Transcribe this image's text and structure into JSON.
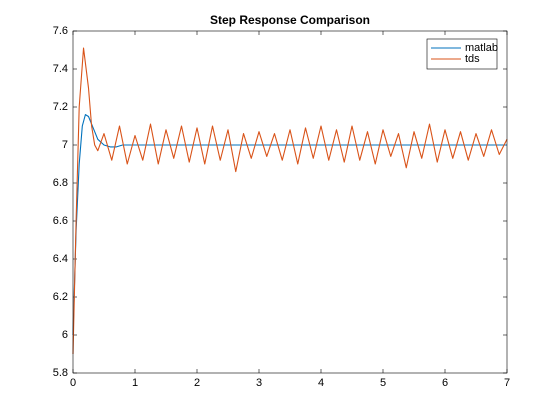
{
  "chart_data": {
    "type": "line",
    "title": "Step Response Comparison",
    "xlim": [
      0,
      7
    ],
    "xticks": [
      0,
      1,
      2,
      3,
      4,
      5,
      6,
      7
    ],
    "ylim": [
      5.8,
      7.6
    ],
    "yticks": [
      5.8,
      6,
      6.2,
      6.4,
      6.6,
      6.8,
      7,
      7.2,
      7.4,
      7.6
    ],
    "grid": false,
    "legend": "northeast",
    "series": [
      {
        "name": "matlab",
        "color": "#0072bd",
        "x": [
          0,
          0.05,
          0.1,
          0.15,
          0.2,
          0.25,
          0.3,
          0.35,
          0.4,
          0.5,
          0.6,
          0.7,
          0.8,
          1,
          2,
          3,
          4,
          5,
          6,
          7
        ],
        "values": [
          6,
          6.55,
          6.9,
          7.1,
          7.16,
          7.15,
          7.11,
          7.07,
          7.03,
          7,
          6.99,
          6.99,
          7,
          7,
          7,
          7,
          7,
          7,
          7,
          7
        ]
      },
      {
        "name": "tds",
        "color": "#d95319",
        "x": [
          0,
          0.05,
          0.1,
          0.17,
          0.25,
          0.3,
          0.35,
          0.4,
          0.5,
          0.625,
          0.75,
          0.875,
          1,
          1.125,
          1.25,
          1.375,
          1.5,
          1.625,
          1.75,
          1.875,
          2,
          2.125,
          2.25,
          2.375,
          2.5,
          2.625,
          2.75,
          2.875,
          3,
          3.125,
          3.25,
          3.375,
          3.5,
          3.625,
          3.75,
          3.875,
          4,
          4.125,
          4.25,
          4.375,
          4.5,
          4.625,
          4.75,
          4.875,
          5,
          5.125,
          5.25,
          5.375,
          5.5,
          5.625,
          5.75,
          5.875,
          6,
          6.125,
          6.25,
          6.375,
          6.5,
          6.625,
          6.75,
          6.875,
          7
        ],
        "values": [
          5.9,
          6.6,
          7.2,
          7.51,
          7.3,
          7.1,
          7.0,
          6.97,
          7.06,
          6.92,
          7.1,
          6.9,
          7.05,
          6.92,
          7.11,
          6.9,
          7.08,
          6.93,
          7.1,
          6.91,
          7.09,
          6.9,
          7.1,
          6.92,
          7.08,
          6.86,
          7.06,
          6.93,
          7.07,
          6.94,
          7.06,
          6.92,
          7.08,
          6.9,
          7.09,
          6.93,
          7.1,
          6.92,
          7.08,
          6.91,
          7.1,
          6.92,
          7.07,
          6.9,
          7.08,
          6.94,
          7.06,
          6.88,
          7.07,
          6.93,
          7.11,
          6.91,
          7.08,
          6.93,
          7.07,
          6.92,
          7.06,
          6.94,
          7.08,
          6.95,
          7.03
        ]
      }
    ]
  }
}
